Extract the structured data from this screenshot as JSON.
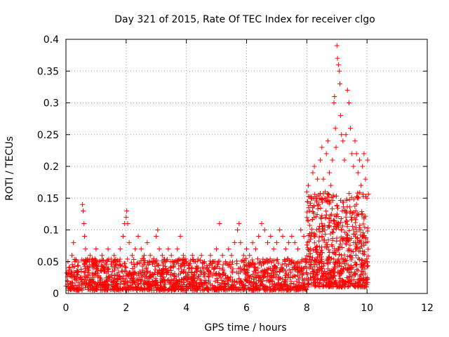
{
  "chart_data": {
    "type": "scatter",
    "title": "Day 321 of 2015, Rate Of TEC Index for receiver clgo",
    "xlabel": "GPS time / hours",
    "ylabel": "ROTI / TECUs",
    "xlim": [
      0,
      12
    ],
    "ylim": [
      0,
      0.4
    ],
    "xticks": [
      "0",
      "2",
      "4",
      "6",
      "8",
      "10",
      "12"
    ],
    "yticks": [
      "0",
      "0.05",
      "0.1",
      "0.15",
      "0.2",
      "0.25",
      "0.3",
      "0.35",
      "0.4"
    ],
    "grid": true,
    "marker": "+",
    "color": "#ff0000",
    "series": [
      {
        "name": "ROTI",
        "x": [
          0.05,
          0.1,
          0.15,
          0.2,
          0.25,
          0.3,
          0.55,
          0.57,
          0.6,
          0.62,
          0.65,
          0.7,
          0.8,
          0.9,
          1.0,
          1.1,
          1.2,
          1.3,
          1.4,
          1.5,
          1.6,
          1.7,
          1.8,
          1.9,
          1.95,
          2.0,
          2.02,
          2.05,
          2.1,
          2.2,
          2.3,
          2.4,
          2.5,
          2.6,
          2.7,
          2.8,
          2.9,
          3.0,
          3.05,
          3.1,
          3.2,
          3.3,
          3.4,
          3.5,
          3.6,
          3.7,
          3.8,
          3.9,
          4.0,
          4.1,
          4.2,
          4.3,
          4.4,
          4.5,
          4.6,
          4.7,
          4.8,
          4.9,
          5.0,
          5.1,
          5.2,
          5.3,
          5.4,
          5.5,
          5.6,
          5.7,
          5.75,
          5.8,
          5.9,
          6.0,
          6.1,
          6.2,
          6.3,
          6.4,
          6.5,
          6.6,
          6.7,
          6.8,
          6.9,
          7.0,
          7.1,
          7.2,
          7.3,
          7.4,
          7.5,
          7.6,
          7.7,
          7.8,
          7.9,
          8.0,
          8.05,
          8.1,
          8.15,
          8.2,
          8.25,
          8.3,
          8.35,
          8.4,
          8.45,
          8.5,
          8.55,
          8.6,
          8.65,
          8.7,
          8.75,
          8.8,
          8.85,
          8.9,
          8.92,
          8.95,
          8.97,
          9.0,
          9.02,
          9.05,
          9.08,
          9.1,
          9.12,
          9.15,
          9.2,
          9.25,
          9.3,
          9.35,
          9.4,
          9.45,
          9.5,
          9.55,
          9.6,
          9.65,
          9.7,
          9.75,
          9.8,
          9.85,
          9.9,
          9.95,
          10.0,
          10.02
        ],
        "values": [
          0.02,
          0.04,
          0.03,
          0.06,
          0.08,
          0.05,
          0.14,
          0.13,
          0.11,
          0.09,
          0.07,
          0.05,
          0.06,
          0.04,
          0.07,
          0.05,
          0.06,
          0.04,
          0.07,
          0.05,
          0.06,
          0.05,
          0.07,
          0.09,
          0.11,
          0.12,
          0.13,
          0.11,
          0.08,
          0.06,
          0.07,
          0.09,
          0.07,
          0.06,
          0.08,
          0.06,
          0.05,
          0.09,
          0.1,
          0.07,
          0.06,
          0.05,
          0.07,
          0.06,
          0.05,
          0.07,
          0.09,
          0.06,
          0.05,
          0.04,
          0.06,
          0.05,
          0.04,
          0.06,
          0.05,
          0.04,
          0.06,
          0.05,
          0.07,
          0.11,
          0.06,
          0.05,
          0.07,
          0.06,
          0.08,
          0.1,
          0.11,
          0.08,
          0.06,
          0.07,
          0.06,
          0.08,
          0.07,
          0.09,
          0.11,
          0.1,
          0.08,
          0.09,
          0.07,
          0.08,
          0.1,
          0.09,
          0.07,
          0.08,
          0.09,
          0.08,
          0.07,
          0.1,
          0.09,
          0.16,
          0.17,
          0.13,
          0.15,
          0.19,
          0.2,
          0.15,
          0.18,
          0.14,
          0.21,
          0.23,
          0.18,
          0.15,
          0.22,
          0.24,
          0.19,
          0.17,
          0.21,
          0.3,
          0.31,
          0.26,
          0.23,
          0.39,
          0.37,
          0.36,
          0.35,
          0.33,
          0.28,
          0.25,
          0.24,
          0.21,
          0.25,
          0.32,
          0.3,
          0.26,
          0.22,
          0.2,
          0.24,
          0.22,
          0.19,
          0.21,
          0.17,
          0.2,
          0.22,
          0.18,
          0.15,
          0.21
        ],
        "bands": [
          {
            "x0": 0.0,
            "x1": 8.0,
            "low": 0.005,
            "high": 0.055,
            "count": 1500
          },
          {
            "x0": 8.0,
            "x1": 10.05,
            "low": 0.01,
            "high": 0.16,
            "count": 700
          }
        ]
      }
    ]
  }
}
